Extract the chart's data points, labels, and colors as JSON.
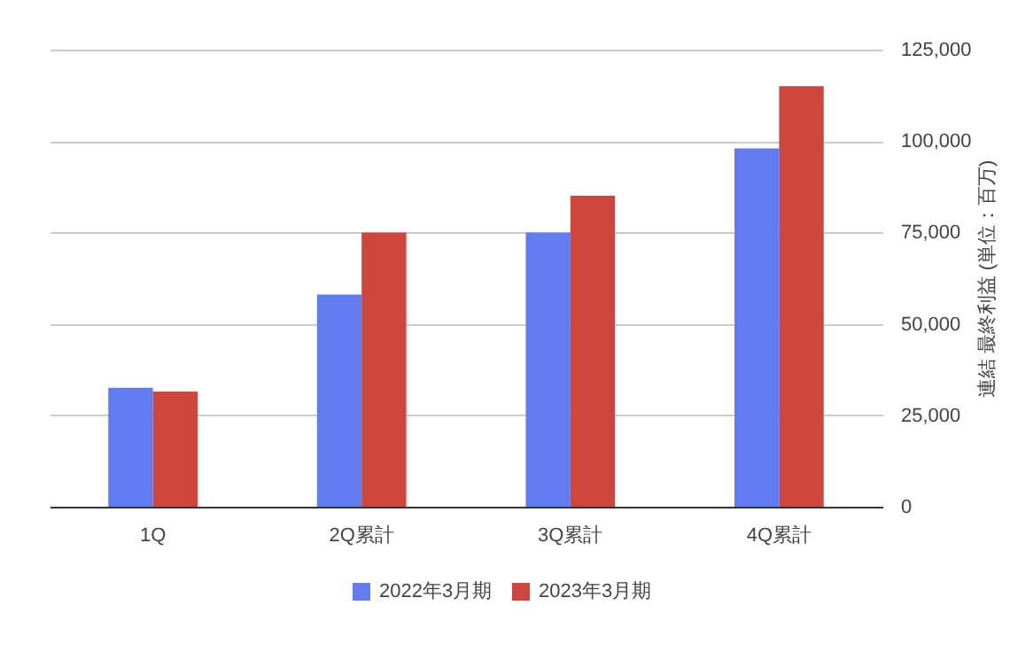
{
  "chart_data": {
    "type": "bar",
    "ylabel": "連結 最終利益 (単位：百万)",
    "categories": [
      "1Q",
      "2Q累計",
      "3Q累計",
      "4Q累計"
    ],
    "series": [
      {
        "name": "2022年3月期",
        "color": "#607cf0",
        "values": [
          32500,
          58000,
          75000,
          98000
        ]
      },
      {
        "name": "2023年3月期",
        "color": "#cf463c",
        "values": [
          31500,
          75000,
          85000,
          115000
        ]
      }
    ],
    "ylim": [
      0,
      125000
    ],
    "yticks": [
      0,
      {
        "value": 25000,
        "label": "25,000"
      },
      {
        "value": 50000,
        "label": "50,000"
      },
      {
        "value": 75000,
        "label": "75,000"
      },
      {
        "value": 100000,
        "label": "100,000"
      },
      {
        "value": 125000,
        "label": "125,000"
      }
    ],
    "grid": "y",
    "legend": "bottom"
  }
}
